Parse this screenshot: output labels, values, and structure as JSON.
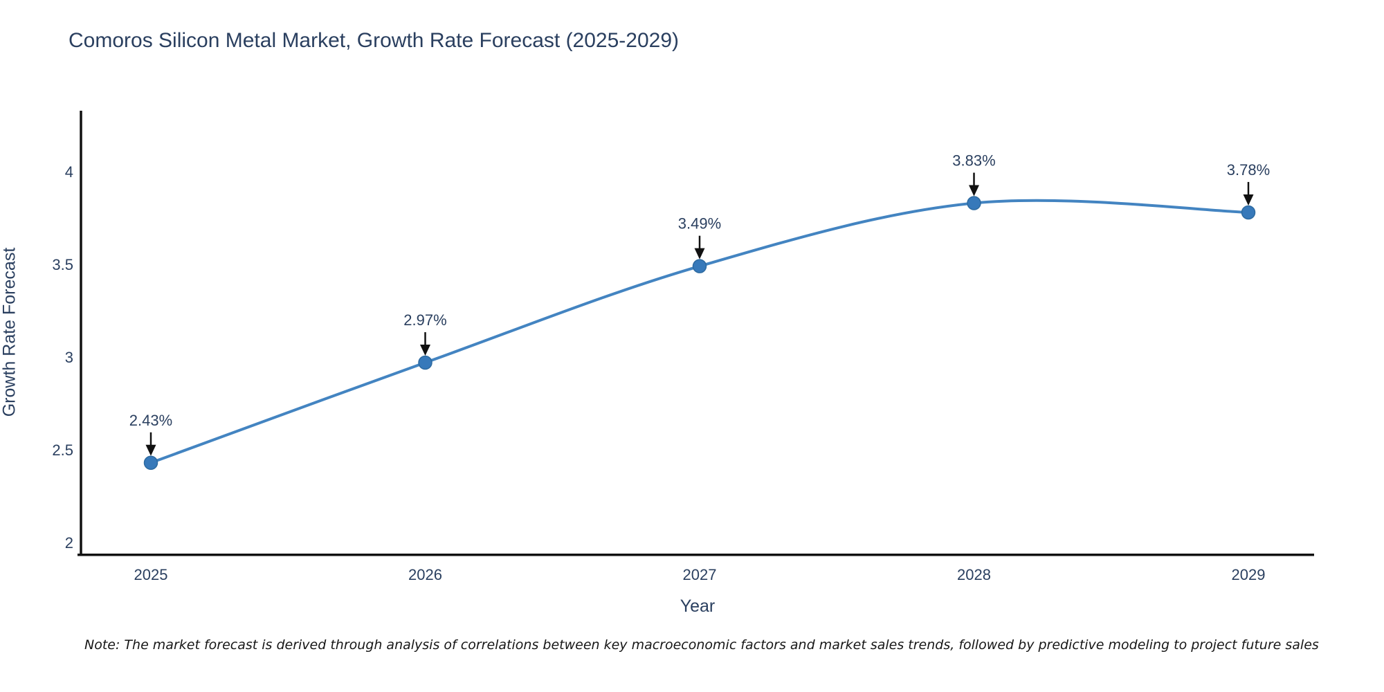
{
  "title": "Comoros Silicon Metal Market, Growth Rate Forecast (2025-2029)",
  "note": "Note: The market forecast is derived through analysis of correlations between key macroeconomic factors and market sales trends, followed by predictive modeling to project future sales",
  "axes": {
    "xlabel": "Year",
    "ylabel": "Growth Rate Forecast"
  },
  "colors": {
    "line": "#4384c1",
    "marker_fill": "#3779ba",
    "marker_stroke": "#2d6aa0",
    "axis_line": "#111111",
    "tick_text": "#2a3f5f",
    "annotation_text": "#2a3f5f",
    "arrow": "#111111",
    "title_text": "#2a3f5f",
    "note_text": "#161616",
    "background": "#ffffff"
  },
  "chart_data": {
    "type": "line",
    "title": "Comoros Silicon Metal Market, Growth Rate Forecast (2025-2029)",
    "xlabel": "Year",
    "ylabel": "Growth Rate Forecast",
    "x": [
      2025,
      2026,
      2027,
      2028,
      2029
    ],
    "series": [
      {
        "name": "Growth Rate Forecast",
        "values": [
          2.43,
          2.97,
          3.49,
          3.83,
          3.78
        ]
      }
    ],
    "point_labels": [
      "2.43%",
      "2.97%",
      "3.49%",
      "3.83%",
      "3.78%"
    ],
    "xticks": [
      "2025",
      "2026",
      "2027",
      "2028",
      "2029"
    ],
    "yticks": [
      2,
      2.5,
      3,
      3.5,
      4
    ],
    "xlim": [
      2024.74,
      2029.24
    ],
    "ylim": [
      1.93,
      4.33
    ],
    "grid": false,
    "legend": "none",
    "line_shape": "spline",
    "markers": true,
    "annotations": "arrow-above-each-point"
  }
}
